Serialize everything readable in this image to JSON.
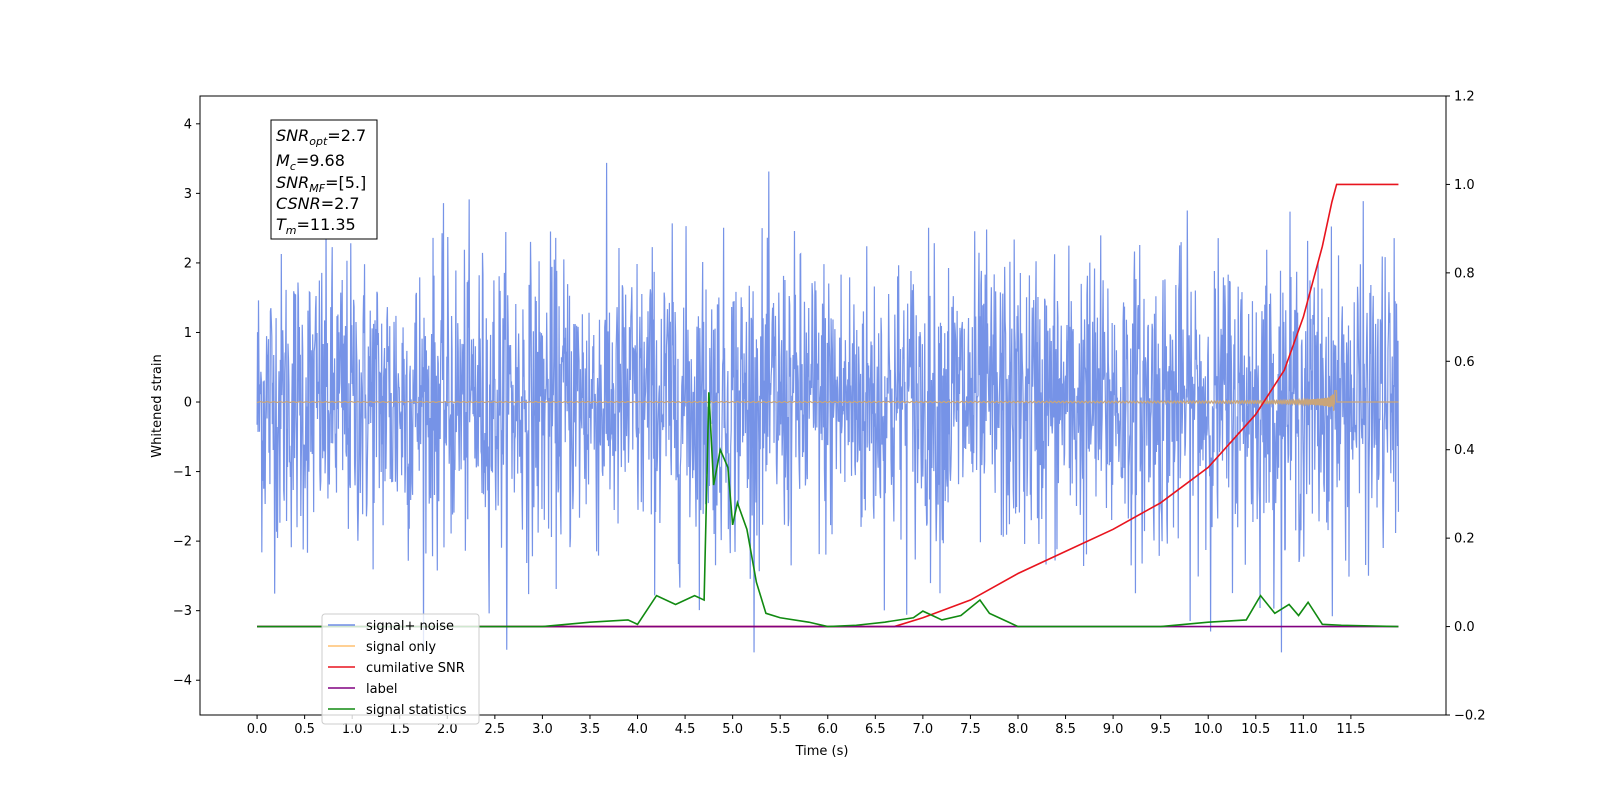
{
  "chart_data": {
    "type": "line",
    "xlabel": "Time (s)",
    "ylabel_left": "Whitened strain",
    "ylabel_right": "",
    "xlim": [
      -0.6,
      12.5
    ],
    "ylim_left": [
      -4.5,
      4.4
    ],
    "ylim_right": [
      -0.2,
      1.2
    ],
    "x_ticks": [
      "0.0",
      "0.5",
      "1.0",
      "1.5",
      "2.0",
      "2.5",
      "3.0",
      "3.5",
      "4.0",
      "4.5",
      "5.0",
      "5.5",
      "6.0",
      "6.5",
      "7.0",
      "7.5",
      "8.0",
      "8.5",
      "9.0",
      "9.5",
      "10.0",
      "10.5",
      "11.0",
      "11.5"
    ],
    "y_left_ticks": [
      "4",
      "3",
      "2",
      "1",
      "0",
      "−1",
      "−2",
      "−3",
      "−4"
    ],
    "y_right_ticks": [
      "1.2",
      "1.0",
      "0.8",
      "0.6",
      "0.4",
      "0.2",
      "0.0",
      "−0.2"
    ],
    "grid": false,
    "legend_position": "lower-left",
    "colors": {
      "signal_noise": "#6f8de6",
      "signal_only": "#c9a57a",
      "cumulative_snr": "#e8141e",
      "label": "#800080",
      "signal_statistics": "#118a11"
    },
    "series": [
      {
        "name": "signal+ noise",
        "axis": "left",
        "x_range": [
          0.0,
          12.0
        ],
        "amplitude_envelope": [
          -3.3,
          4.0
        ],
        "description_value": "noise"
      },
      {
        "name": "signal only",
        "axis": "left",
        "x_range": [
          0.0,
          11.35
        ],
        "peak_amplitude": 0.35
      },
      {
        "name": "cumilative SNR",
        "axis": "right",
        "x": [
          0.0,
          6.7,
          7.0,
          7.5,
          8.0,
          8.5,
          9.0,
          9.5,
          10.0,
          10.5,
          10.8,
          11.0,
          11.2,
          11.3,
          11.35,
          12.0
        ],
        "values": [
          0.0,
          0.0,
          0.02,
          0.06,
          0.12,
          0.17,
          0.22,
          0.28,
          0.36,
          0.48,
          0.58,
          0.7,
          0.86,
          0.96,
          1.0,
          1.0
        ]
      },
      {
        "name": "label",
        "axis": "right",
        "x": [
          0.0,
          12.0
        ],
        "values": [
          0.0,
          0.0
        ]
      },
      {
        "name": "signal statistics",
        "axis": "right",
        "x": [
          0.0,
          2.0,
          3.0,
          3.5,
          3.9,
          4.0,
          4.2,
          4.4,
          4.6,
          4.7,
          4.75,
          4.8,
          4.87,
          4.95,
          5.0,
          5.05,
          5.15,
          5.25,
          5.35,
          5.5,
          5.8,
          6.0,
          6.3,
          6.6,
          6.9,
          7.0,
          7.2,
          7.4,
          7.6,
          7.7,
          7.9,
          8.0,
          9.5,
          10.0,
          10.4,
          10.55,
          10.7,
          10.85,
          10.95,
          11.05,
          11.2,
          11.4,
          12.0
        ],
        "values": [
          0.0,
          0.0,
          0.0,
          0.01,
          0.015,
          0.005,
          0.07,
          0.05,
          0.07,
          0.06,
          0.53,
          0.32,
          0.4,
          0.36,
          0.23,
          0.28,
          0.22,
          0.1,
          0.03,
          0.02,
          0.01,
          0.0,
          0.003,
          0.01,
          0.02,
          0.035,
          0.015,
          0.025,
          0.06,
          0.03,
          0.01,
          0.0,
          0.0,
          0.01,
          0.015,
          0.07,
          0.03,
          0.05,
          0.025,
          0.055,
          0.005,
          0.003,
          0.0
        ]
      }
    ],
    "annotation_box": {
      "snr_opt": "=2.7",
      "mc": "=9.68",
      "snr_mf": "=[5.]",
      "csnr": "=2.7",
      "tm": "=11.35"
    }
  },
  "legend": {
    "items": [
      {
        "label": "signal+ noise",
        "color": "#6f8de6"
      },
      {
        "label": "signal only",
        "color": "#ffc070"
      },
      {
        "label": "cumilative SNR",
        "color": "#e8141e"
      },
      {
        "label": "label",
        "color": "#800080"
      },
      {
        "label": "signal statistics",
        "color": "#118a11"
      }
    ]
  }
}
